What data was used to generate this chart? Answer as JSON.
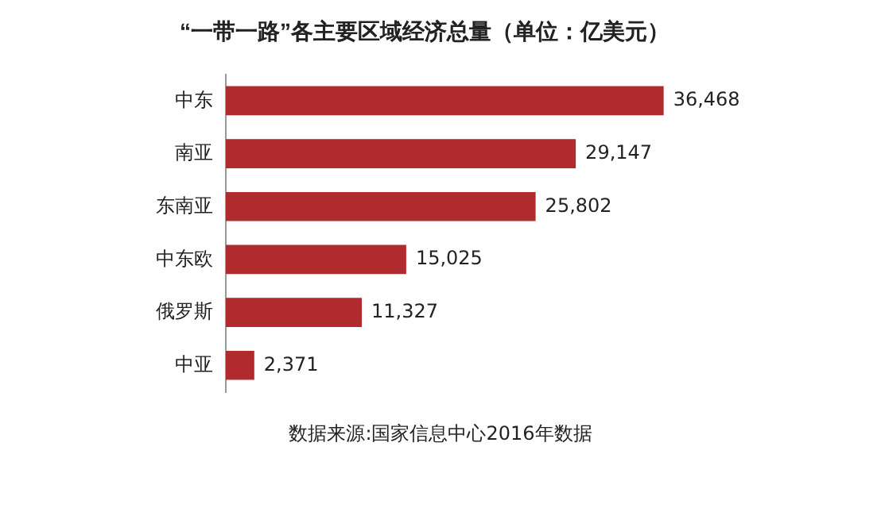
{
  "chart_data": {
    "type": "bar",
    "orientation": "horizontal",
    "title": "“一带一路”各主要区域经济总量（单位：亿美元）",
    "categories": [
      "中东",
      "南亚",
      "东南亚",
      "中东欧",
      "俄罗斯",
      "中亚"
    ],
    "values": [
      36468,
      29147,
      25802,
      15025,
      11327,
      2371
    ],
    "value_labels": [
      "36,468",
      "29,147",
      "25,802",
      "15,025",
      "11,327",
      "2,371"
    ],
    "color": "#b02a2e",
    "annotations": [
      "数据来源:国家信息中心2016年数据"
    ]
  }
}
